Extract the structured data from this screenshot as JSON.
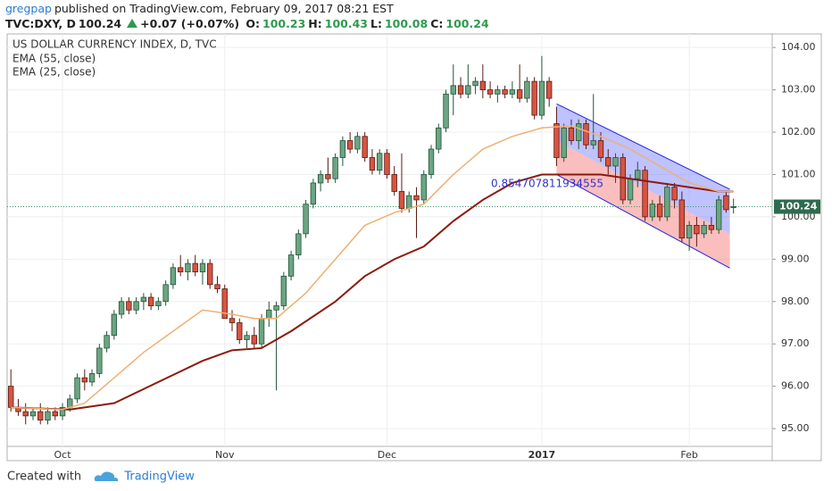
{
  "header": {
    "author": "gregpap",
    "published": "published on TradingView.com, February 09, 2017 08:21 EST",
    "symbol": "TVC:DXY, D",
    "price": "100.24",
    "change": "+0.07 (+0.07%)",
    "o_label": "O:",
    "o": "100.23",
    "h_label": "H:",
    "h": "100.43",
    "l_label": "L:",
    "l": "100.08",
    "c_label": "C:",
    "c": "100.24"
  },
  "footer": {
    "created": "Created with",
    "brand": "TradingView"
  },
  "chart_data": {
    "type": "candlestick",
    "title": "US DOLLAR CURRENCY INDEX, D, TVC",
    "categories": [
      null,
      null,
      null,
      null,
      null,
      null,
      null,
      "Oct",
      null,
      null,
      null,
      null,
      null,
      null,
      null,
      null,
      null,
      null,
      null,
      null,
      null,
      null,
      null,
      null,
      null,
      null,
      null,
      null,
      null,
      "Nov",
      null,
      null,
      null,
      null,
      null,
      null,
      null,
      null,
      null,
      null,
      null,
      null,
      null,
      null,
      null,
      null,
      null,
      null,
      null,
      null,
      null,
      "Dec",
      null,
      null,
      null,
      null,
      null,
      null,
      null,
      null,
      null,
      null,
      null,
      null,
      null,
      null,
      null,
      null,
      null,
      null,
      null,
      null,
      "2017",
      null,
      null,
      null,
      null,
      null,
      null,
      null,
      null,
      null,
      null,
      null,
      null,
      null,
      null,
      null,
      null,
      null,
      null,
      null,
      "Feb",
      null,
      null,
      null,
      null,
      null,
      null
    ],
    "candles": [
      [
        96.0,
        96.4,
        95.4,
        95.5
      ],
      [
        95.5,
        95.7,
        95.3,
        95.4
      ],
      [
        95.4,
        95.6,
        95.1,
        95.3
      ],
      [
        95.3,
        95.5,
        95.2,
        95.4
      ],
      [
        95.4,
        95.6,
        95.1,
        95.2
      ],
      [
        95.2,
        95.5,
        95.1,
        95.4
      ],
      [
        95.4,
        95.5,
        95.2,
        95.3
      ],
      [
        95.3,
        95.6,
        95.2,
        95.5
      ],
      [
        95.5,
        95.8,
        95.4,
        95.7
      ],
      [
        95.7,
        96.3,
        95.6,
        96.2
      ],
      [
        96.2,
        96.4,
        95.9,
        96.1
      ],
      [
        96.1,
        96.4,
        96.0,
        96.3
      ],
      [
        96.3,
        97.0,
        96.2,
        96.9
      ],
      [
        96.9,
        97.3,
        96.8,
        97.2
      ],
      [
        97.2,
        97.8,
        97.1,
        97.7
      ],
      [
        97.7,
        98.1,
        97.6,
        98.0
      ],
      [
        98.0,
        98.1,
        97.7,
        97.8
      ],
      [
        97.8,
        98.1,
        97.7,
        98.0
      ],
      [
        98.0,
        98.2,
        97.8,
        98.1
      ],
      [
        98.1,
        98.2,
        97.8,
        97.9
      ],
      [
        97.9,
        98.1,
        97.8,
        98.0
      ],
      [
        98.0,
        98.5,
        97.9,
        98.4
      ],
      [
        98.4,
        98.9,
        98.3,
        98.8
      ],
      [
        98.8,
        99.1,
        98.6,
        98.7
      ],
      [
        98.7,
        99.0,
        98.5,
        98.9
      ],
      [
        98.9,
        99.1,
        98.6,
        98.7
      ],
      [
        98.7,
        99.0,
        98.4,
        98.9
      ],
      [
        98.9,
        99.0,
        98.3,
        98.4
      ],
      [
        98.4,
        98.6,
        98.2,
        98.3
      ],
      [
        98.3,
        98.4,
        97.6,
        97.6
      ],
      [
        97.6,
        97.8,
        97.3,
        97.5
      ],
      [
        97.5,
        97.6,
        97.0,
        97.1
      ],
      [
        97.1,
        97.3,
        96.9,
        97.2
      ],
      [
        97.2,
        97.4,
        96.9,
        97.0
      ],
      [
        97.0,
        97.7,
        96.9,
        97.6
      ],
      [
        97.6,
        98.0,
        97.4,
        97.8
      ],
      [
        97.8,
        98.0,
        95.9,
        97.9
      ],
      [
        97.9,
        98.7,
        97.8,
        98.6
      ],
      [
        98.6,
        99.2,
        98.5,
        99.1
      ],
      [
        99.1,
        99.7,
        99.0,
        99.6
      ],
      [
        99.6,
        100.4,
        99.5,
        100.3
      ],
      [
        100.3,
        100.9,
        100.2,
        100.8
      ],
      [
        100.8,
        101.1,
        100.6,
        101.0
      ],
      [
        101.0,
        101.4,
        100.8,
        100.9
      ],
      [
        100.9,
        101.5,
        100.8,
        101.4
      ],
      [
        101.4,
        101.9,
        101.2,
        101.8
      ],
      [
        101.8,
        102.0,
        101.5,
        101.6
      ],
      [
        101.6,
        102.0,
        101.5,
        101.9
      ],
      [
        101.9,
        102.0,
        101.3,
        101.4
      ],
      [
        101.4,
        101.6,
        101.0,
        101.1
      ],
      [
        101.1,
        101.6,
        101.0,
        101.5
      ],
      [
        101.5,
        101.6,
        100.9,
        101.0
      ],
      [
        101.0,
        101.2,
        100.5,
        100.6
      ],
      [
        100.6,
        101.5,
        100.1,
        100.2
      ],
      [
        100.2,
        100.6,
        100.1,
        100.5
      ],
      [
        100.5,
        100.7,
        99.5,
        100.4
      ],
      [
        100.4,
        101.1,
        100.3,
        101.0
      ],
      [
        101.0,
        101.7,
        100.9,
        101.6
      ],
      [
        101.6,
        102.2,
        101.5,
        102.1
      ],
      [
        102.1,
        103.0,
        102.0,
        102.9
      ],
      [
        102.9,
        103.6,
        102.4,
        103.1
      ],
      [
        103.1,
        103.3,
        102.8,
        102.9
      ],
      [
        102.9,
        103.6,
        102.8,
        103.1
      ],
      [
        103.1,
        103.3,
        102.9,
        103.2
      ],
      [
        103.2,
        103.6,
        102.8,
        103.0
      ],
      [
        103.0,
        103.2,
        102.8,
        102.9
      ],
      [
        102.9,
        103.1,
        102.7,
        103.0
      ],
      [
        103.0,
        103.1,
        102.8,
        102.9
      ],
      [
        102.9,
        103.2,
        102.8,
        103.0
      ],
      [
        103.0,
        103.6,
        102.7,
        102.8
      ],
      [
        102.8,
        103.3,
        102.7,
        103.2
      ],
      [
        103.2,
        103.3,
        102.3,
        102.4
      ],
      [
        102.4,
        103.8,
        102.3,
        103.2
      ],
      [
        103.2,
        103.3,
        102.6,
        102.8
      ],
      [
        102.2,
        102.6,
        101.2,
        101.4
      ],
      [
        101.4,
        102.2,
        101.3,
        102.1
      ],
      [
        102.1,
        102.3,
        101.7,
        101.8
      ],
      [
        101.8,
        102.3,
        101.6,
        102.2
      ],
      [
        102.2,
        102.3,
        101.6,
        101.7
      ],
      [
        101.7,
        102.9,
        101.6,
        101.8
      ],
      [
        101.8,
        102.0,
        101.3,
        101.4
      ],
      [
        101.4,
        101.6,
        101.0,
        101.2
      ],
      [
        101.2,
        101.5,
        100.8,
        101.4
      ],
      [
        101.4,
        101.5,
        100.3,
        100.4
      ],
      [
        100.4,
        101.0,
        100.3,
        100.9
      ],
      [
        100.9,
        101.3,
        100.7,
        101.1
      ],
      [
        101.1,
        101.2,
        99.9,
        100.0
      ],
      [
        100.0,
        100.4,
        99.9,
        100.3
      ],
      [
        100.3,
        100.5,
        99.9,
        100.0
      ],
      [
        100.0,
        100.8,
        99.9,
        100.7
      ],
      [
        100.7,
        100.8,
        100.2,
        100.4
      ],
      [
        100.4,
        100.6,
        99.4,
        99.5
      ],
      [
        99.5,
        99.9,
        99.2,
        99.8
      ],
      [
        99.8,
        100.0,
        99.3,
        99.6
      ],
      [
        99.6,
        99.9,
        99.5,
        99.8
      ],
      [
        99.8,
        100.0,
        99.6,
        99.7
      ],
      [
        99.7,
        100.5,
        99.6,
        100.4
      ],
      [
        100.5,
        100.6,
        100.1,
        100.17
      ],
      [
        100.23,
        100.43,
        100.08,
        100.24
      ]
    ],
    "series": [
      {
        "name": "EMA (55, close)",
        "color": "#8b1a0e",
        "x": [
          0,
          8,
          14,
          20,
          26,
          30,
          34,
          38,
          44,
          48,
          52,
          56,
          60,
          64,
          68,
          72,
          76,
          80,
          84,
          88,
          92,
          96,
          98
        ],
        "values": [
          95.5,
          95.45,
          95.6,
          96.1,
          96.6,
          96.85,
          96.9,
          97.3,
          98.0,
          98.6,
          99.0,
          99.3,
          99.9,
          100.4,
          100.8,
          101.0,
          101.0,
          101.0,
          100.9,
          100.8,
          100.7,
          100.6,
          100.6
        ]
      },
      {
        "name": "EMA (25, close)",
        "color": "#f0b070",
        "x": [
          0,
          7,
          10,
          14,
          18,
          22,
          26,
          30,
          33,
          36,
          40,
          44,
          48,
          52,
          56,
          60,
          64,
          68,
          72,
          76,
          80,
          84,
          88,
          92,
          96,
          98
        ],
        "values": [
          95.5,
          95.45,
          95.6,
          96.2,
          96.8,
          97.3,
          97.8,
          97.7,
          97.6,
          97.6,
          98.2,
          99.0,
          99.8,
          100.1,
          100.3,
          101.0,
          101.6,
          101.9,
          102.1,
          102.15,
          101.9,
          101.6,
          101.2,
          100.8,
          100.6,
          100.6
        ]
      }
    ],
    "channel": {
      "x": [
        74,
        97.5
      ],
      "upper": [
        102.67,
        100.65
      ],
      "middle": [
        101.8,
        99.6
      ],
      "lower": [
        101.0,
        98.79
      ],
      "label": "0.854707811934555"
    },
    "last_price": 100.24,
    "ylim": [
      94.58,
      104.32
    ],
    "yticks": [
      {
        "value": 95,
        "label": "95.00"
      },
      {
        "value": 96,
        "label": "96.00"
      },
      {
        "value": 97,
        "label": "97.00"
      },
      {
        "value": 98,
        "label": "98.00"
      },
      {
        "value": 99,
        "label": "99.00"
      },
      {
        "value": 100,
        "label": "100.00"
      },
      {
        "value": 101,
        "label": "101.00"
      },
      {
        "value": 102,
        "label": "102.00"
      },
      {
        "value": 103,
        "label": "103.00"
      },
      {
        "value": 104,
        "label": "104.00"
      }
    ],
    "grid": true
  }
}
